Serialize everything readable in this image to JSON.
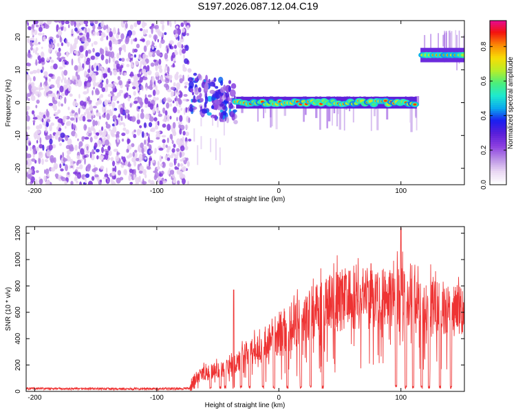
{
  "title": "S197.2026.087.12.04.C19",
  "colors": {
    "accent": "#ee3333",
    "cmap": [
      "#ffffff",
      "#e9d7f3",
      "#b98fe5",
      "#8c3fe0",
      "#5a1fd9",
      "#1b1df0",
      "#0aa8ee",
      "#1ee9cf",
      "#4cee7a",
      "#b9ee28",
      "#f8dc05",
      "#fb8a06",
      "#f4130d",
      "#e60a9a"
    ]
  },
  "chart_data": [
    {
      "type": "heatmap",
      "title": "",
      "xlabel": "Height of straight line (km)",
      "ylabel": "Frequency (Hz)",
      "xlim": [
        -207,
        152
      ],
      "ylim": [
        -25,
        25
      ],
      "xticks": [
        -200,
        -100,
        0,
        100
      ],
      "xtick_labels": [
        "-200",
        "-100",
        "0",
        "100"
      ],
      "yticks": [
        -20,
        -10,
        0,
        10,
        20
      ],
      "ytick_labels": [
        "-20",
        "-10",
        "0",
        "10",
        "20"
      ],
      "colorbar": {
        "label": "Normalized spectral amplitude",
        "range": [
          0.0,
          0.95
        ],
        "ticks": [
          0.0,
          0.2,
          0.4,
          0.6,
          0.8
        ],
        "tick_labels": [
          "0.0",
          "0.2",
          "0.4",
          "0.6",
          "0.8"
        ]
      },
      "features": [
        {
          "name": "noise",
          "x_range": [
            -207,
            -73
          ],
          "y_range": [
            -25,
            25
          ],
          "amplitude": 0.05
        },
        {
          "name": "transition",
          "x_range": [
            -73,
            -35
          ],
          "y_center": 3,
          "amplitude": 0.25
        },
        {
          "name": "ridge",
          "x_range": [
            -35,
            113
          ],
          "y_center": 0,
          "amplitude": 0.8
        },
        {
          "name": "upper-ridge",
          "x_range": [
            116,
            152
          ],
          "y_center": 14.5,
          "amplitude": 0.65
        }
      ]
    },
    {
      "type": "line",
      "title": "",
      "xlabel": "Height of straight line (km)",
      "ylabel": "SNR (10 * v/v)",
      "xlim": [
        -207,
        152
      ],
      "ylim": [
        0,
        1250
      ],
      "xticks": [
        -200,
        -100,
        0,
        100
      ],
      "xtick_labels": [
        "-200",
        "-100",
        "0",
        "100"
      ],
      "yticks": [
        0,
        200,
        400,
        600,
        800,
        1000,
        1200
      ],
      "ytick_labels": [
        "0",
        "200",
        "400",
        "600",
        "800",
        "1000",
        "1200"
      ],
      "series": [
        {
          "name": "SNR",
          "color": "#ee3333",
          "x": [
            -207,
            -180,
            -150,
            -120,
            -90,
            -73,
            -65,
            -55,
            -45,
            -35,
            -25,
            -15,
            -5,
            5,
            15,
            25,
            35,
            45,
            55,
            65,
            75,
            85,
            95,
            100,
            105,
            115,
            125,
            135,
            145,
            152
          ],
          "y": [
            22,
            20,
            20,
            19,
            20,
            22,
            130,
            150,
            170,
            210,
            290,
            330,
            380,
            420,
            520,
            580,
            640,
            680,
            700,
            720,
            720,
            690,
            680,
            700,
            680,
            650,
            630,
            620,
            600,
            590
          ]
        }
      ],
      "dropouts_x": [
        -56,
        -48,
        -44,
        -37,
        -31,
        -24,
        -13,
        -4,
        7,
        18,
        26,
        36,
        96,
        104,
        110,
        117,
        123,
        132,
        141
      ]
    }
  ]
}
